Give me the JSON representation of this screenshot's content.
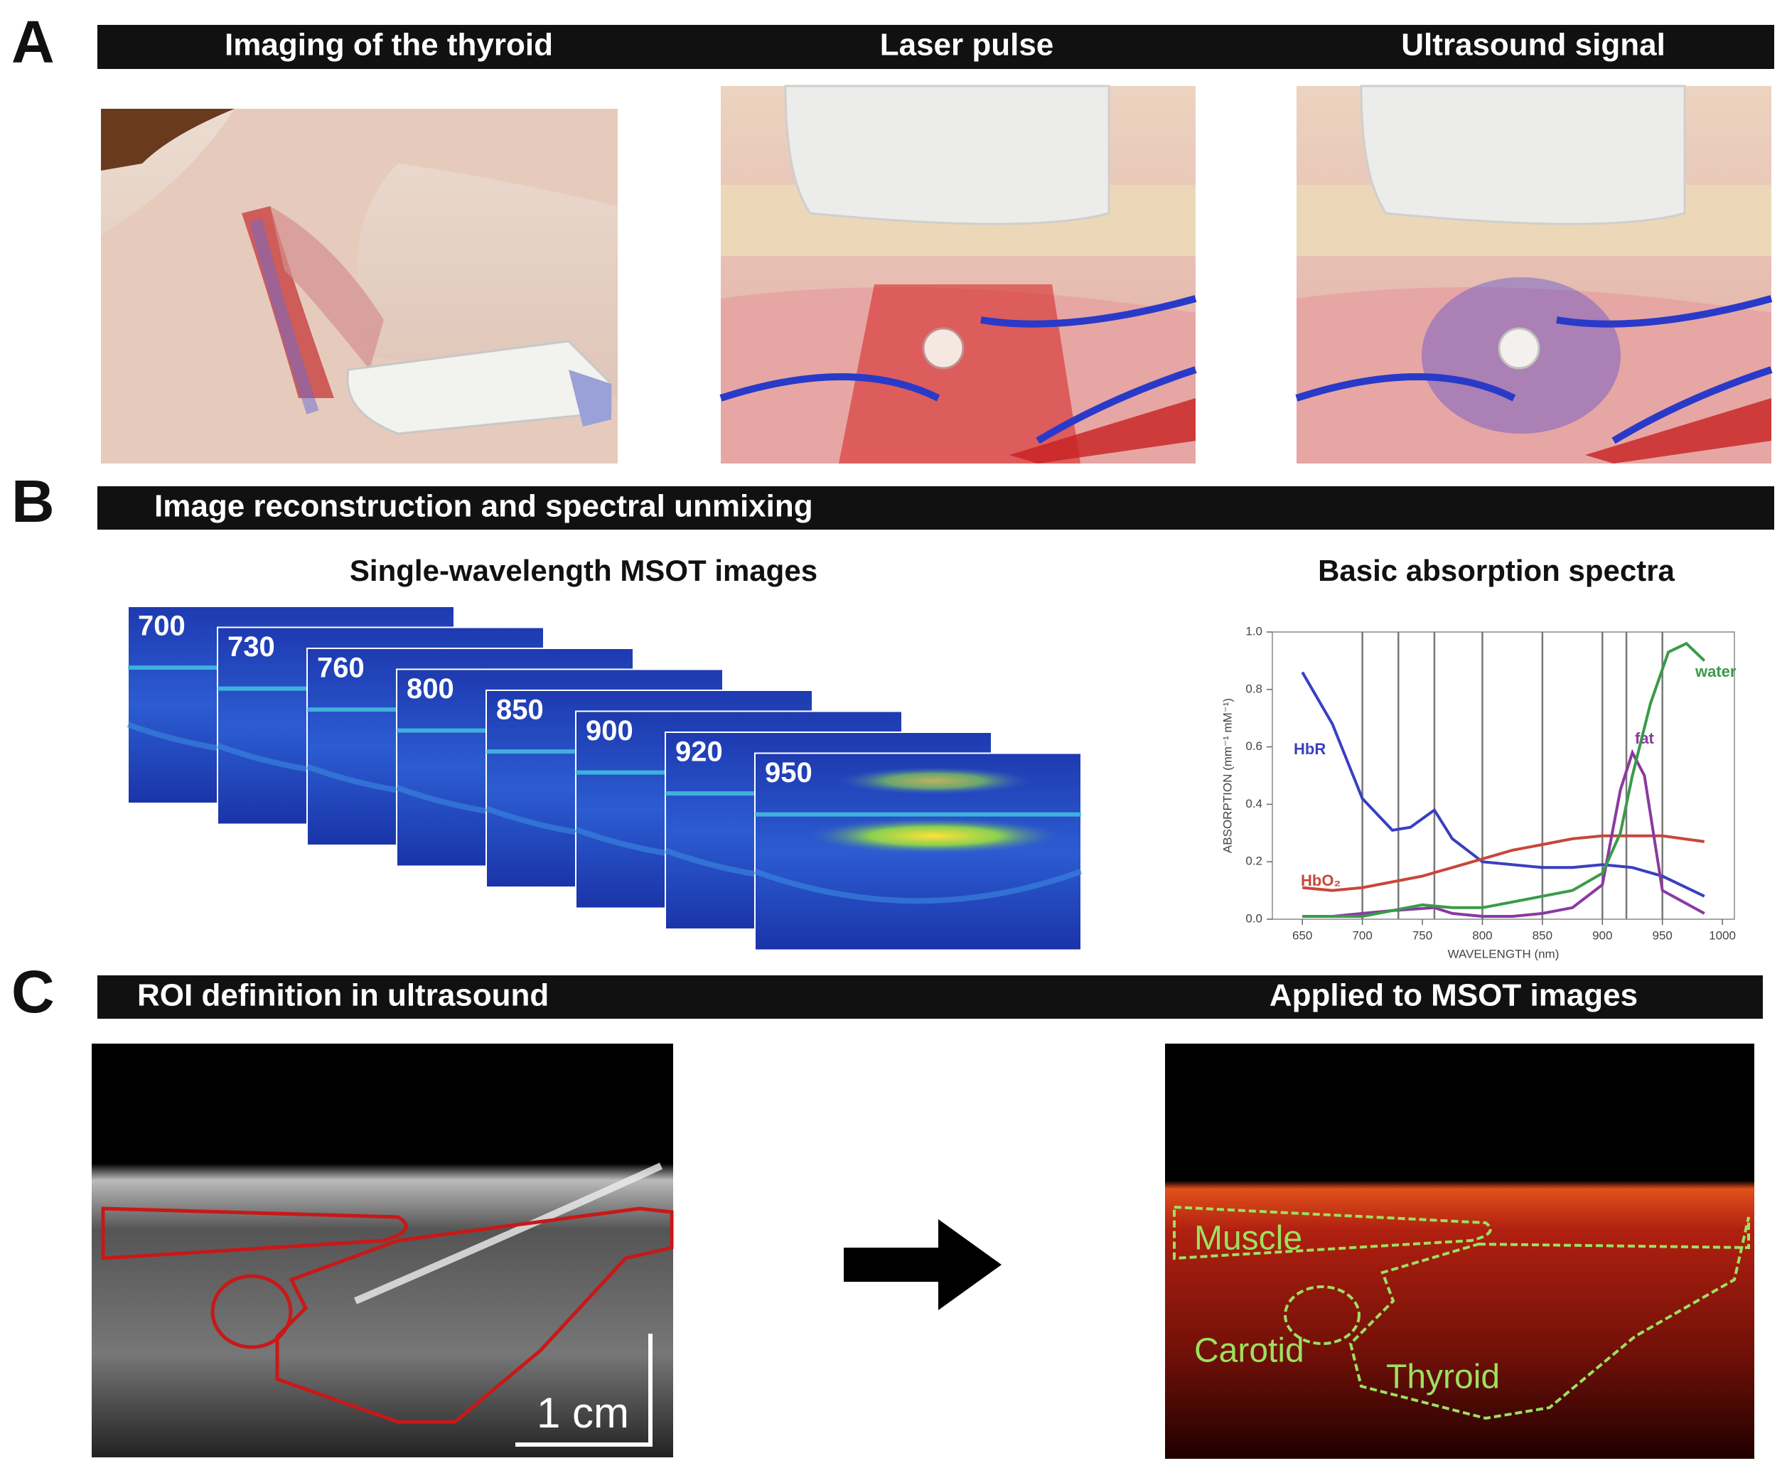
{
  "panels": [
    {
      "letter": "A",
      "headers": [
        "Imaging of the thyroid",
        "Laser pulse",
        "Ultrasound signal"
      ]
    },
    {
      "letter": "B",
      "header": "Image reconstruction and spectral unmixing",
      "subtitle": "Single-wavelength MSOT images",
      "wavelengths": [
        700,
        730,
        760,
        800,
        850,
        900,
        920,
        950
      ]
    },
    {
      "letter": "C",
      "headers": [
        "ROI definition in ultrasound",
        "Applied to MSOT images"
      ],
      "scale_bar": "1 cm",
      "roi_labels": [
        "Muscle",
        "Carotid",
        "Thyroid"
      ]
    }
  ],
  "chart_data": {
    "type": "line",
    "title": "Basic absorption spectra",
    "x_label": "WAVELENGTH (nm)",
    "y_label": "ABSORPTION (mm⁻¹ mM⁻¹)",
    "xlim": [
      625,
      1010
    ],
    "ylim": [
      0,
      1
    ],
    "xticks": [
      650,
      700,
      750,
      800,
      850,
      900,
      950,
      1000
    ],
    "yticks": [
      {
        "value": 0,
        "label": "0.0"
      },
      {
        "value": 0.2,
        "label": "0.2"
      },
      {
        "value": 0.4,
        "label": "0.4"
      },
      {
        "value": 0.6,
        "label": "0.6"
      },
      {
        "value": 0.8,
        "label": "0.8"
      },
      {
        "value": 1,
        "label": "1.0"
      }
    ],
    "series": [
      {
        "name": "HbR",
        "color": "#3a3fc0",
        "x": [
          650,
          675,
          700,
          725,
          740,
          760,
          775,
          800,
          825,
          850,
          875,
          900,
          925,
          950,
          985
        ],
        "values": [
          0.86,
          0.68,
          0.42,
          0.31,
          0.32,
          0.38,
          0.28,
          0.2,
          0.19,
          0.18,
          0.18,
          0.19,
          0.18,
          0.15,
          0.08
        ]
      },
      {
        "name": "HbO₂",
        "color": "#c8473a",
        "x": [
          650,
          675,
          700,
          725,
          750,
          775,
          800,
          825,
          850,
          875,
          900,
          925,
          950,
          985
        ],
        "values": [
          0.11,
          0.1,
          0.11,
          0.13,
          0.15,
          0.18,
          0.21,
          0.24,
          0.26,
          0.28,
          0.29,
          0.29,
          0.29,
          0.27
        ]
      },
      {
        "name": "fat",
        "color": "#8a3aa0",
        "x": [
          650,
          675,
          700,
          725,
          760,
          775,
          800,
          825,
          850,
          875,
          900,
          915,
          925,
          935,
          950,
          985
        ],
        "values": [
          0.01,
          0.01,
          0.02,
          0.03,
          0.04,
          0.02,
          0.01,
          0.01,
          0.02,
          0.04,
          0.12,
          0.45,
          0.58,
          0.5,
          0.1,
          0.02
        ]
      },
      {
        "name": "water",
        "color": "#3a9a4a",
        "x": [
          650,
          700,
          725,
          750,
          775,
          800,
          825,
          850,
          875,
          900,
          915,
          925,
          940,
          955,
          970,
          985
        ],
        "values": [
          0.01,
          0.01,
          0.03,
          0.05,
          0.04,
          0.04,
          0.06,
          0.08,
          0.1,
          0.16,
          0.3,
          0.5,
          0.75,
          0.93,
          0.96,
          0.9
        ]
      }
    ]
  }
}
